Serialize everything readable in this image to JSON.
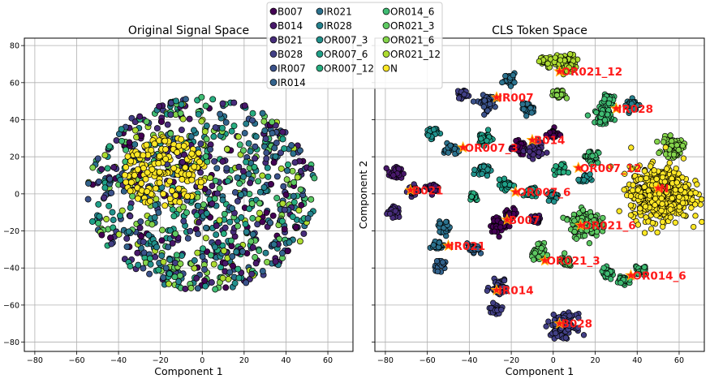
{
  "chart_data": [
    {
      "type": "scatter",
      "title": "Original Signal Space",
      "xlabel": "Component 1",
      "ylabel": "",
      "xlim": [
        -85,
        72
      ],
      "ylim": [
        -85,
        84
      ],
      "xticks": [
        -80,
        -60,
        -40,
        -20,
        0,
        20,
        40,
        60
      ],
      "yticks": [
        -80,
        -60,
        -40,
        -20,
        0,
        20,
        40,
        60,
        80
      ],
      "grid": true,
      "description_layout": "dense circular cloud centered near (0,0) radius about 55, yellow N class cluster near (-20,10)",
      "clusters": [
        {
          "series": "mixed",
          "cx": 0,
          "cy": 0,
          "r": 55,
          "n": 900
        },
        {
          "series": "N",
          "cx": -18,
          "cy": 12,
          "r": 20,
          "n": 170
        }
      ]
    },
    {
      "type": "scatter",
      "title": "CLS Token Space",
      "xlabel": "Component 1",
      "ylabel": "Component 2",
      "xlim": [
        -85,
        72
      ],
      "ylim": [
        -85,
        84
      ],
      "xticks": [
        -80,
        -60,
        -40,
        -20,
        0,
        20,
        40,
        60
      ],
      "yticks": [
        -80,
        -60,
        -40,
        -20,
        0,
        20,
        40,
        60,
        80
      ],
      "grid": true,
      "annotations": [
        {
          "text": "OR021_12",
          "x": 3,
          "y": 66
        },
        {
          "text": "IR007",
          "x": -27,
          "y": 52
        },
        {
          "text": "IR028",
          "x": 30,
          "y": 46
        },
        {
          "text": "OR007_3",
          "x": -43,
          "y": 25
        },
        {
          "text": "B014",
          "x": -10,
          "y": 29
        },
        {
          "text": "OR007_12",
          "x": 12,
          "y": 14
        },
        {
          "text": "B021",
          "x": -68,
          "y": 2
        },
        {
          "text": "OR007_6",
          "x": -18,
          "y": 1
        },
        {
          "text": "N",
          "x": 50,
          "y": 3
        },
        {
          "text": "B007",
          "x": -22,
          "y": -14
        },
        {
          "text": "OR021_6",
          "x": 13,
          "y": -17
        },
        {
          "text": "IR021",
          "x": -50,
          "y": -28
        },
        {
          "text": "OR021_3",
          "x": -4,
          "y": -36
        },
        {
          "text": "OR014_6",
          "x": 37,
          "y": -44
        },
        {
          "text": "IR014",
          "x": -27,
          "y": -52
        },
        {
          "text": "B028",
          "x": 3,
          "y": -70
        }
      ],
      "clusters": [
        {
          "series": "OR021_12",
          "cx": -4,
          "cy": 71,
          "r": 3
        },
        {
          "series": "OR021_12",
          "cx": 6,
          "cy": 70,
          "r": 5
        },
        {
          "series": "OR021_6",
          "cx": 3,
          "cy": 53,
          "r": 3
        },
        {
          "series": "IR021",
          "cx": -21,
          "cy": 62,
          "r": 3
        },
        {
          "series": "B028",
          "cx": -43,
          "cy": 54,
          "r": 2.5
        },
        {
          "series": "IR007",
          "cx": -32,
          "cy": 49,
          "r": 4
        },
        {
          "series": "IR021",
          "cx": -12,
          "cy": 46,
          "r": 3
        },
        {
          "series": "OR014_6",
          "cx": 27,
          "cy": 50,
          "r": 3.5
        },
        {
          "series": "OR014_6",
          "cx": 24,
          "cy": 42,
          "r": 4
        },
        {
          "series": "IR028",
          "cx": 38,
          "cy": 48,
          "r": 3
        },
        {
          "series": "OR007_3",
          "cx": -58,
          "cy": 33,
          "r": 3
        },
        {
          "series": "IR021",
          "cx": -49,
          "cy": 24,
          "r": 3
        },
        {
          "series": "OR007_6",
          "cx": -33,
          "cy": 30,
          "r": 3.5
        },
        {
          "series": "B007",
          "cx": -16,
          "cy": 25,
          "r": 3
        },
        {
          "series": "B021",
          "cx": -9,
          "cy": 23,
          "r": 4
        },
        {
          "series": "B007",
          "cx": 0,
          "cy": 32,
          "r": 3
        },
        {
          "series": "OR021_6",
          "cx": 57,
          "cy": 25,
          "r": 5
        },
        {
          "series": "OR014_6",
          "cx": 18,
          "cy": 20,
          "r": 3.5
        },
        {
          "series": "OR007_3",
          "cx": -34,
          "cy": 13,
          "r": 3
        },
        {
          "series": "OR007_12",
          "cx": 3,
          "cy": 13,
          "r": 3
        },
        {
          "series": "OR007_3",
          "cx": 15,
          "cy": 8,
          "r": 2.5
        },
        {
          "series": "B014",
          "cx": -75,
          "cy": 11,
          "r": 3.5
        },
        {
          "series": "OR007_6",
          "cx": -22,
          "cy": 5,
          "r": 3
        },
        {
          "series": "OR007_6",
          "cx": -10,
          "cy": 1,
          "r": 2.5
        },
        {
          "series": "B021",
          "cx": -67,
          "cy": 2,
          "r": 3
        },
        {
          "series": "B014",
          "cx": -57,
          "cy": 3,
          "r": 3
        },
        {
          "series": "OR007_12",
          "cx": -38,
          "cy": -1,
          "r": 2.5
        },
        {
          "series": "OR007_3",
          "cx": 0,
          "cy": -1,
          "r": 2.5
        },
        {
          "series": "N",
          "cx": 51,
          "cy": 0,
          "r": 14
        },
        {
          "series": "B021",
          "cx": -76,
          "cy": -10,
          "r": 3
        },
        {
          "series": "B007",
          "cx": -20,
          "cy": -11,
          "r": 3
        },
        {
          "series": "B007",
          "cx": -26,
          "cy": -17,
          "r": 4
        },
        {
          "series": "B014",
          "cx": -8,
          "cy": -14,
          "r": 2.5
        },
        {
          "series": "OR021_3",
          "cx": 15,
          "cy": -16,
          "r": 7
        },
        {
          "series": "IR021",
          "cx": -52,
          "cy": -18,
          "r": 3
        },
        {
          "series": "IR014",
          "cx": -38,
          "cy": -30,
          "r": 3
        },
        {
          "series": "IR021",
          "cx": -55,
          "cy": -28,
          "r": 2.5
        },
        {
          "series": "IR014",
          "cx": -54,
          "cy": -38,
          "r": 3
        },
        {
          "series": "OR021_3",
          "cx": -6,
          "cy": -32,
          "r": 4
        },
        {
          "series": "OR021_3",
          "cx": 6,
          "cy": -37,
          "r": 3
        },
        {
          "series": "OR014_6",
          "cx": 26,
          "cy": -43,
          "r": 3
        },
        {
          "series": "OR014_6",
          "cx": 33,
          "cy": -47,
          "r": 3
        },
        {
          "series": "OR014_6",
          "cx": 42,
          "cy": -41,
          "r": 3
        },
        {
          "series": "B028",
          "cx": -26,
          "cy": -50,
          "r": 4
        },
        {
          "series": "B028",
          "cx": -28,
          "cy": -62,
          "r": 2.5
        },
        {
          "series": "B028",
          "cx": 5,
          "cy": -71,
          "r": 6
        }
      ]
    }
  ],
  "legend": {
    "placement": "upper center",
    "items": [
      {
        "label": "B007",
        "color": "#440154"
      },
      {
        "label": "B014",
        "color": "#48186a"
      },
      {
        "label": "B021",
        "color": "#472d7b"
      },
      {
        "label": "B028",
        "color": "#424086"
      },
      {
        "label": "IR007",
        "color": "#3b528b"
      },
      {
        "label": "IR014",
        "color": "#33638d"
      },
      {
        "label": "IR021",
        "color": "#2c728e"
      },
      {
        "label": "IR028",
        "color": "#26828e"
      },
      {
        "label": "OR007_3",
        "color": "#21918c"
      },
      {
        "label": "OR007_6",
        "color": "#1fa088"
      },
      {
        "label": "OR007_12",
        "color": "#28ae80"
      },
      {
        "label": "OR014_6",
        "color": "#3fbc73"
      },
      {
        "label": "OR021_3",
        "color": "#5ec962"
      },
      {
        "label": "OR021_6",
        "color": "#84d44b"
      },
      {
        "label": "OR021_12",
        "color": "#addc30"
      },
      {
        "label": "N",
        "color": "#fde725"
      }
    ]
  }
}
